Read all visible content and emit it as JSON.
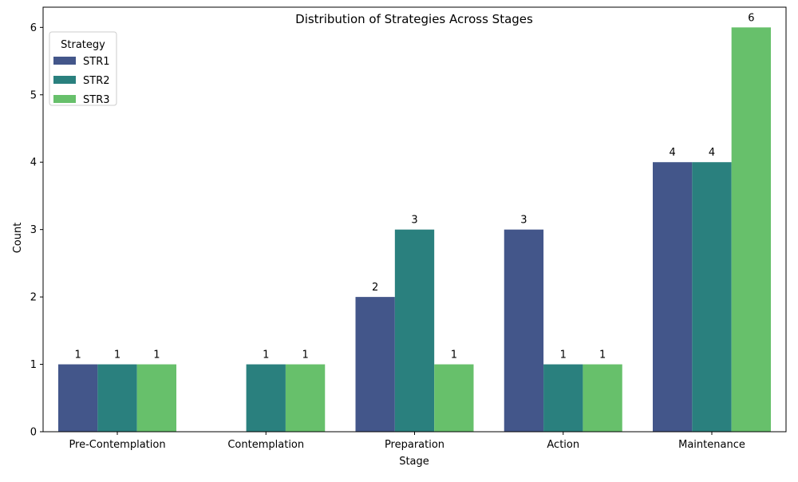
{
  "chart_data": {
    "type": "bar",
    "title": "Distribution of Strategies Across Stages",
    "xlabel": "Stage",
    "ylabel": "Count",
    "categories": [
      "Pre-Contemplation",
      "Contemplation",
      "Preparation",
      "Action",
      "Maintenance"
    ],
    "series": [
      {
        "name": "STR1",
        "color": "#43568a",
        "values": [
          1,
          0,
          2,
          3,
          4
        ]
      },
      {
        "name": "STR2",
        "color": "#2a807e",
        "values": [
          1,
          1,
          3,
          1,
          4
        ]
      },
      {
        "name": "STR3",
        "color": "#67c06b",
        "values": [
          1,
          1,
          1,
          1,
          6
        ]
      }
    ],
    "ylim": [
      0,
      6.3
    ],
    "yticks": [
      0,
      1,
      2,
      3,
      4,
      5,
      6
    ],
    "legend": {
      "title": "Strategy",
      "position": "top-left"
    },
    "grid": false
  }
}
